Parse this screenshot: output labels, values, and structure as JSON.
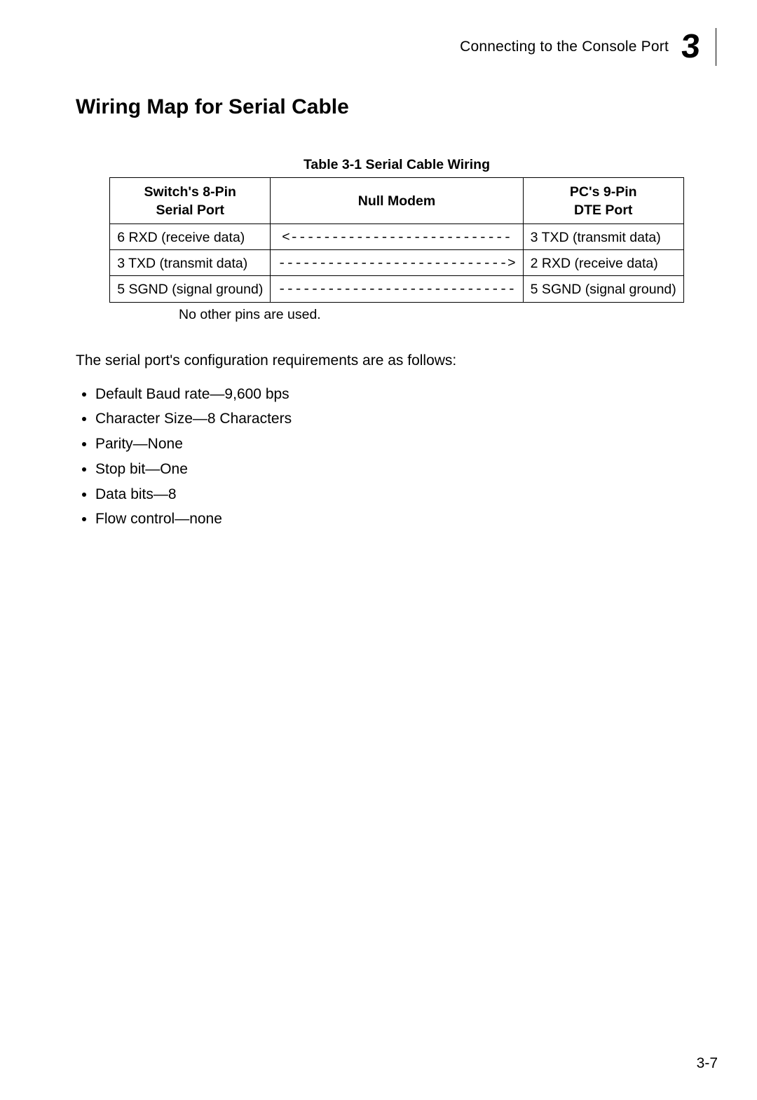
{
  "header": {
    "running_head": "Connecting to the Console Port",
    "chapter_number": "3"
  },
  "section": {
    "heading": "Wiring Map for Serial Cable"
  },
  "table": {
    "type": "table",
    "caption": "Table 3-1  Serial Cable Wiring",
    "background_color": "#ffffff",
    "border_color": "#000000",
    "font_size_pt": 14,
    "header_font_weight": "bold",
    "columns": [
      {
        "line1": "Switch's 8-Pin",
        "line2": "Serial Port",
        "align": "center"
      },
      {
        "line1": "Null Modem",
        "line2": "",
        "align": "center"
      },
      {
        "line1": "PC's 9-Pin",
        "line2": "DTE Port",
        "align": "center"
      }
    ],
    "rows": [
      {
        "left": "6 RXD (receive data)",
        "mid": "<---------------------------",
        "right": "3 TXD (transmit data)"
      },
      {
        "left": "3 TXD (transmit data)",
        "mid": "---------------------------->",
        "right": "2 RXD (receive data)"
      },
      {
        "left": "5 SGND (signal ground)",
        "mid": "-----------------------------",
        "right": "5 SGND (signal ground)"
      }
    ],
    "note": "No other pins are used."
  },
  "config": {
    "intro": "The serial port's configuration requirements are as follows:",
    "items": [
      "Default Baud rate—9,600 bps",
      "Character Size—8 Characters",
      "Parity—None",
      "Stop bit—One",
      "Data bits—8",
      "Flow control—none"
    ]
  },
  "footer": {
    "page_number": "3-7"
  }
}
